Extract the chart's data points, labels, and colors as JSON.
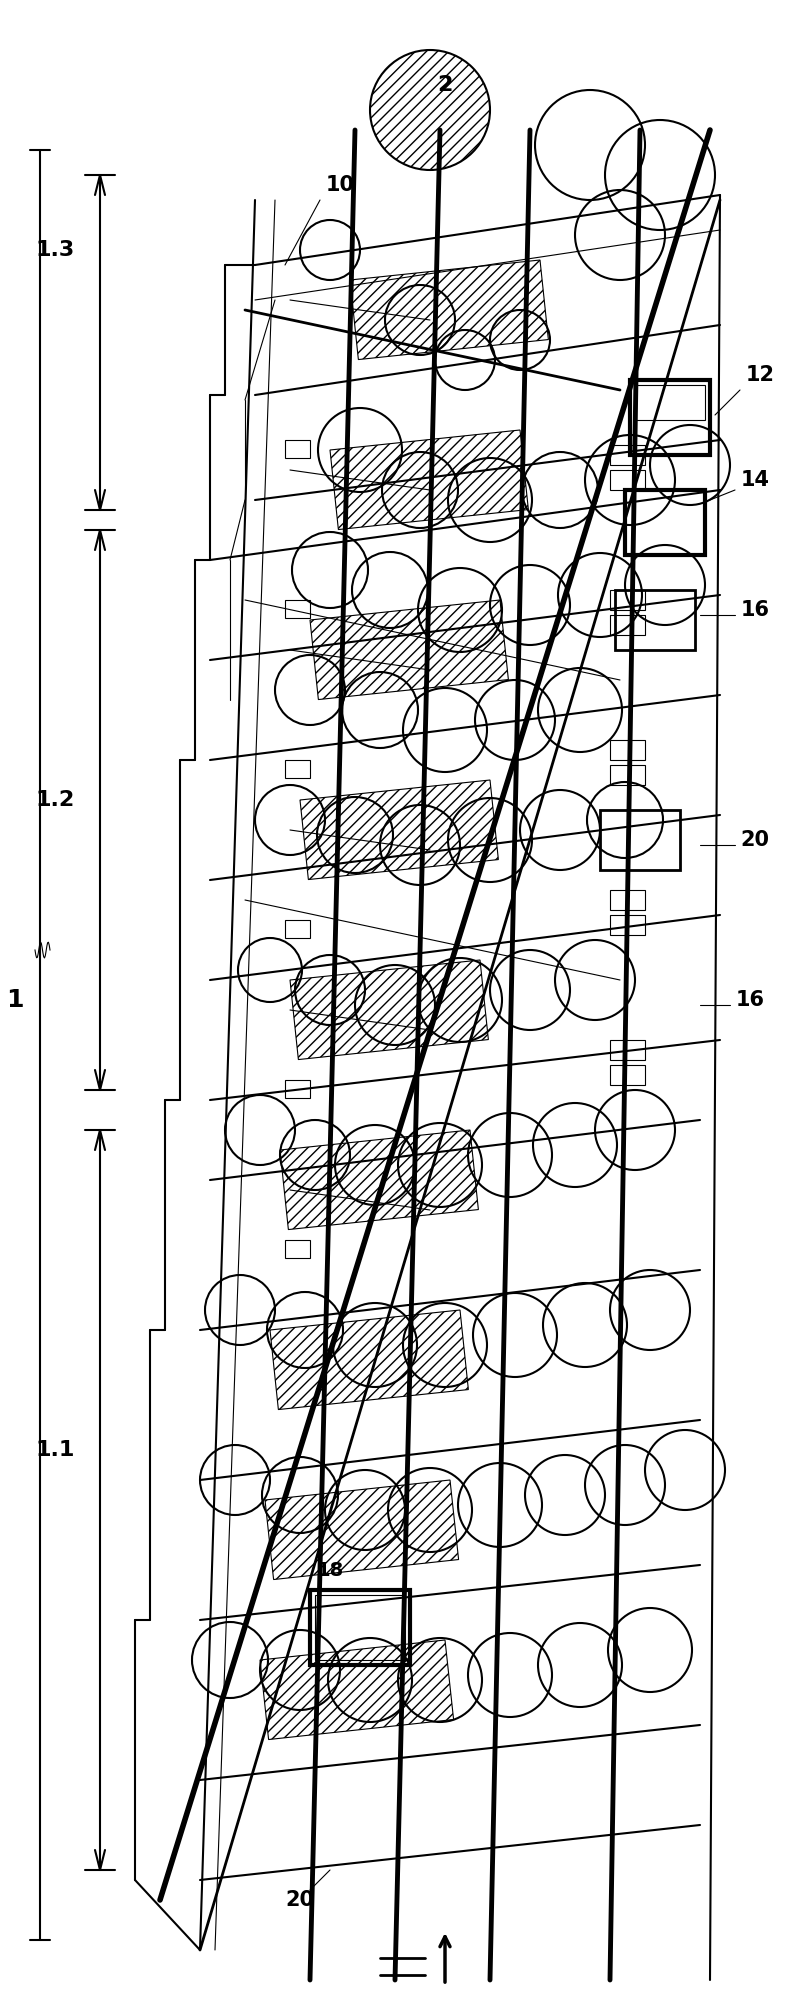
{
  "bg_color": "#ffffff",
  "line_color": "#000000",
  "fig_width": 8.0,
  "fig_height": 20.16,
  "lw_thin": 0.8,
  "lw_med": 1.5,
  "lw_thick": 3.5
}
